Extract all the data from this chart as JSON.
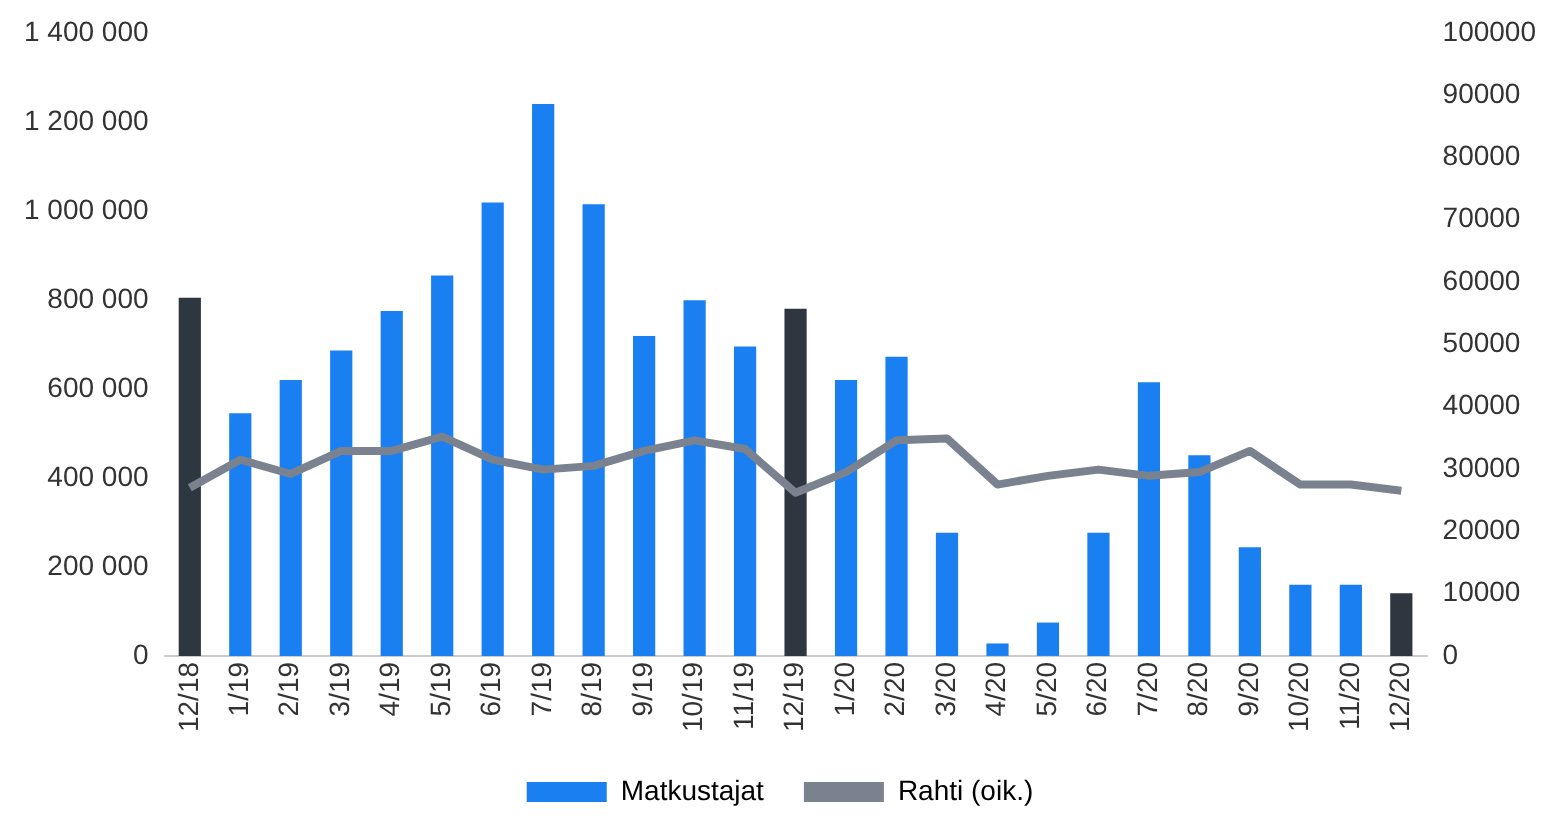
{
  "chart_data": {
    "type": "bar",
    "categories": [
      "12/18",
      "1/19",
      "2/19",
      "3/19",
      "4/19",
      "5/19",
      "6/19",
      "7/19",
      "8/19",
      "9/19",
      "10/19",
      "11/19",
      "12/19",
      "1/20",
      "2/20",
      "3/20",
      "4/20",
      "5/20",
      "6/20",
      "7/20",
      "8/20",
      "9/20",
      "10/20",
      "11/20",
      "12/20"
    ],
    "series": [
      {
        "name": "Matkustajat",
        "color": "#1a7ff0",
        "colors": [
          "#2e3640",
          "#1a7ff0",
          "#1a7ff0",
          "#1a7ff0",
          "#1a7ff0",
          "#1a7ff0",
          "#1a7ff0",
          "#1a7ff0",
          "#1a7ff0",
          "#1a7ff0",
          "#1a7ff0",
          "#1a7ff0",
          "#2e3640",
          "#1a7ff0",
          "#1a7ff0",
          "#1a7ff0",
          "#1a7ff0",
          "#1a7ff0",
          "#1a7ff0",
          "#1a7ff0",
          "#1a7ff0",
          "#1a7ff0",
          "#1a7ff0",
          "#1a7ff0",
          "#2e3640"
        ],
        "values": [
          805000,
          545000,
          620000,
          686000,
          775000,
          855000,
          1019000,
          1240000,
          1015000,
          719000,
          799000,
          695000,
          780000,
          620000,
          672000,
          277000,
          28000,
          75000,
          277000,
          615000,
          451000,
          244000,
          160000,
          160000,
          141000
        ]
      },
      {
        "name": "Rahti (oik.)",
        "type": "line",
        "axis": "y2",
        "color": "#7a8290",
        "values": [
          27000,
          31500,
          29200,
          32900,
          32900,
          35200,
          31500,
          29900,
          30500,
          32900,
          34600,
          33200,
          26200,
          29500,
          34600,
          34900,
          27500,
          28900,
          29900,
          28900,
          29500,
          32900,
          27500,
          27500,
          26500
        ]
      }
    ],
    "ylim": [
      0,
      1400000
    ],
    "yticks": [
      0,
      {
        "value": 200000,
        "label": "200 000"
      },
      {
        "value": 400000,
        "label": "400 000"
      },
      {
        "value": 600000,
        "label": "600 000"
      },
      {
        "value": 800000,
        "label": "800 000"
      },
      {
        "value": 1000000,
        "label": "1 000 000"
      },
      {
        "value": 1200000,
        "label": "1 200 000"
      },
      {
        "value": 1400000,
        "label": "1 400 000"
      }
    ],
    "y2lim": [
      0,
      100000
    ],
    "y2ticks": [
      0,
      10000,
      20000,
      30000,
      40000,
      50000,
      60000,
      70000,
      80000,
      90000,
      100000
    ],
    "grid": false,
    "legend": "bottom",
    "marker": "none",
    "line_style": "solid"
  }
}
